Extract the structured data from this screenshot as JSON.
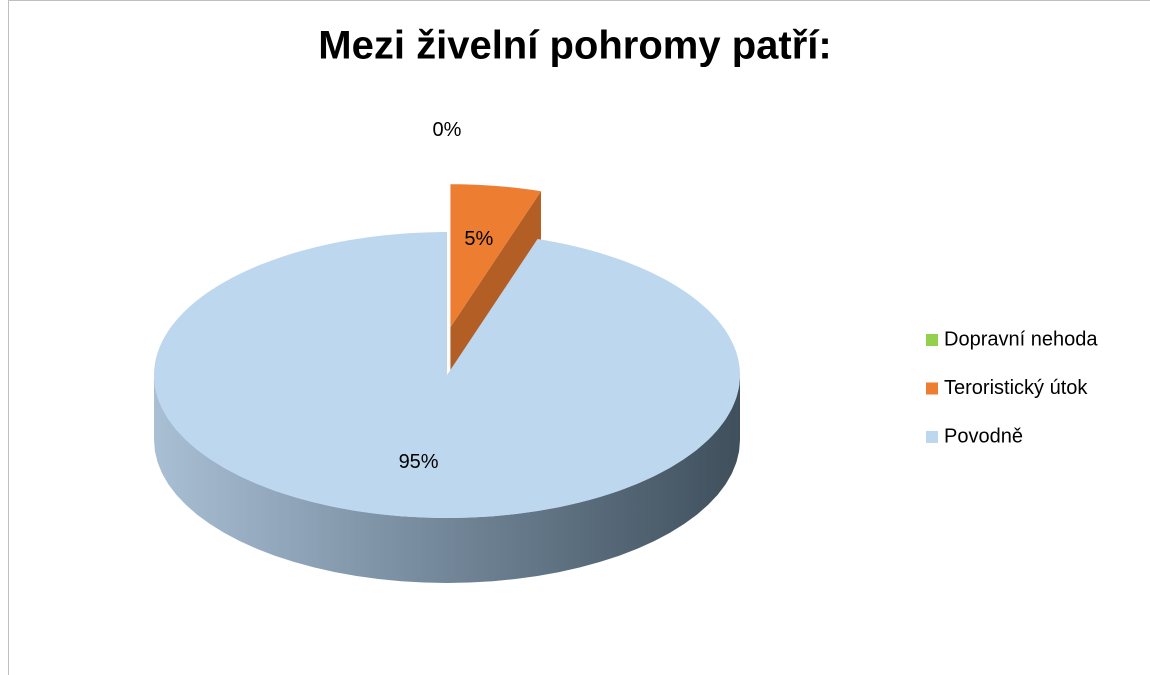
{
  "chart_data": {
    "type": "pie",
    "title": "Mezi živelní pohromy patří:",
    "categories": [
      "Dopravní nehoda",
      "Teroristický útok",
      "Povodně"
    ],
    "values": [
      0,
      5,
      95
    ],
    "value_labels": [
      "0%",
      "5%",
      "95%"
    ],
    "colors": [
      "#92d050",
      "#ed7d31",
      "#bdd7ee"
    ],
    "legend": "right"
  }
}
